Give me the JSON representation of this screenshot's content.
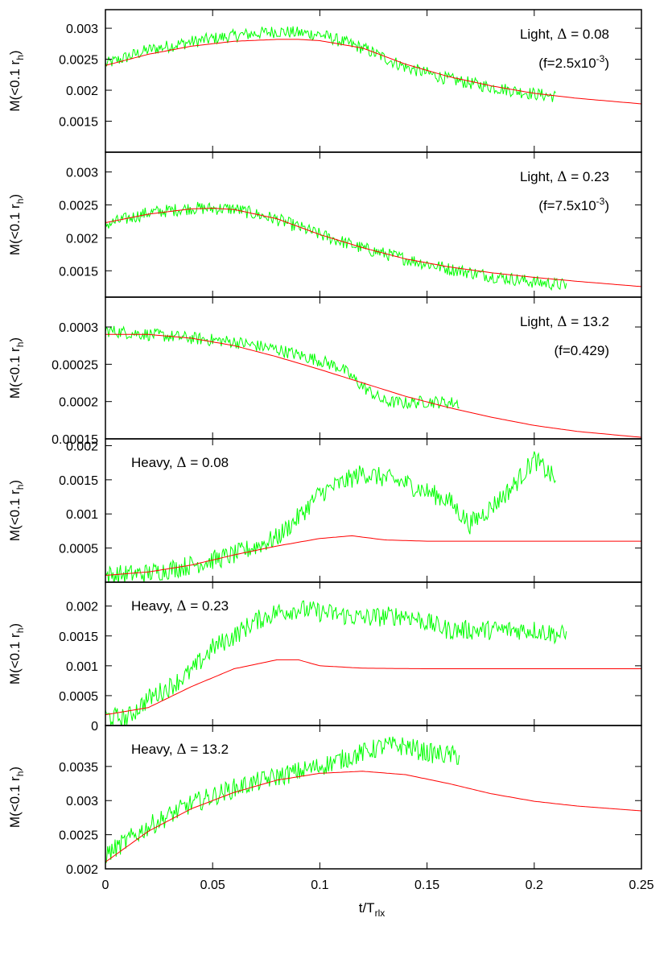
{
  "colors": {
    "simulation": "#00ff00",
    "model": "#ff0000",
    "axes": "#000000"
  },
  "chart_data": {
    "type": "line",
    "layout": "6 vertically stacked panels sharing one x axis",
    "xlabel": "t/T",
    "xlabel_sub": "rlx",
    "ylabel": "M(<0.1 r",
    "ylabel_sub": "h",
    "ylabel_close": ")",
    "xlim": [
      0,
      0.25
    ],
    "xticks": [
      0,
      0.05,
      0.1,
      0.15,
      0.2,
      0.25
    ],
    "xtick_labels": [
      "0",
      "0.05",
      "0.1",
      "0.15",
      "0.2",
      "0.25"
    ],
    "grid": false,
    "panels": [
      {
        "annotation": {
          "prefix": "Light, ",
          "symbol": "Δ",
          "value": " = 0.08"
        },
        "annotation2": {
          "base": "(f=2.5x10",
          "exp": "-3",
          "end": ")"
        },
        "ylim": [
          0.001,
          0.0033
        ],
        "yticks": [
          0.0015,
          0.002,
          0.0025,
          0.003
        ],
        "ytick_labels": [
          "0.0015",
          "0.002",
          "0.0025",
          "0.003"
        ],
        "series": [
          {
            "role": "simulation",
            "x": [
              0,
              0.02,
              0.04,
              0.06,
              0.08,
              0.1,
              0.12,
              0.14,
              0.16,
              0.18,
              0.2,
              0.21
            ],
            "y": [
              0.00242,
              0.00265,
              0.00278,
              0.00288,
              0.00295,
              0.0029,
              0.00268,
              0.00237,
              0.00218,
              0.00205,
              0.00194,
              0.0019
            ]
          },
          {
            "role": "model",
            "x": [
              0,
              0.02,
              0.04,
              0.06,
              0.08,
              0.09,
              0.1,
              0.12,
              0.14,
              0.16,
              0.18,
              0.2,
              0.22,
              0.25
            ],
            "y": [
              0.0024,
              0.00258,
              0.00271,
              0.00279,
              0.00282,
              0.00282,
              0.0028,
              0.00268,
              0.00242,
              0.00222,
              0.00207,
              0.00195,
              0.00187,
              0.00178
            ]
          }
        ]
      },
      {
        "annotation": {
          "prefix": "Light, ",
          "symbol": "Δ",
          "value": " = 0.23"
        },
        "annotation2": {
          "base": "(f=7.5x10",
          "exp": "-3",
          "end": ")"
        },
        "ylim": [
          0.0011,
          0.0033
        ],
        "yticks": [
          0.0015,
          0.002,
          0.0025,
          0.003
        ],
        "ytick_labels": [
          "0.0015",
          "0.002",
          "0.0025",
          "0.003"
        ],
        "series": [
          {
            "role": "simulation",
            "x": [
              0,
              0.02,
              0.04,
              0.06,
              0.08,
              0.1,
              0.12,
              0.14,
              0.16,
              0.18,
              0.2,
              0.215
            ],
            "y": [
              0.0022,
              0.00238,
              0.00245,
              0.00244,
              0.00228,
              0.00205,
              0.00184,
              0.00168,
              0.00153,
              0.00142,
              0.00133,
              0.00128
            ]
          },
          {
            "role": "model",
            "x": [
              0,
              0.02,
              0.04,
              0.05,
              0.06,
              0.08,
              0.1,
              0.12,
              0.14,
              0.16,
              0.18,
              0.2,
              0.22,
              0.25
            ],
            "y": [
              0.00223,
              0.00236,
              0.00244,
              0.00245,
              0.00243,
              0.00229,
              0.00205,
              0.00185,
              0.00168,
              0.00156,
              0.00147,
              0.0014,
              0.00134,
              0.00126
            ]
          }
        ]
      },
      {
        "annotation": {
          "prefix": "Light, ",
          "symbol": "Δ",
          "value": " = 13.2"
        },
        "annotation2": {
          "base": "(f=0.429)",
          "exp": "",
          "end": ""
        },
        "ylim": [
          0.00015,
          0.00034
        ],
        "yticks": [
          0.00015,
          0.0002,
          0.00025,
          0.0003
        ],
        "ytick_labels": [
          "0.00015",
          "0.0002",
          "0.00025",
          "0.0003"
        ],
        "series": [
          {
            "role": "simulation",
            "x": [
              0,
              0.02,
              0.04,
              0.06,
              0.08,
              0.1,
              0.11,
              0.12,
              0.13,
              0.14,
              0.15,
              0.165
            ],
            "y": [
              0.000295,
              0.00029,
              0.000285,
              0.00028,
              0.00027,
              0.000255,
              0.000245,
              0.00022,
              0.0002,
              0.000198,
              0.0002,
              0.000198
            ]
          },
          {
            "role": "model",
            "x": [
              0,
              0.02,
              0.04,
              0.06,
              0.08,
              0.1,
              0.12,
              0.14,
              0.16,
              0.18,
              0.2,
              0.22,
              0.25
            ],
            "y": [
              0.00029,
              0.00029,
              0.000285,
              0.000275,
              0.00026,
              0.000243,
              0.000225,
              0.000207,
              0.000192,
              0.000179,
              0.000168,
              0.00016,
              0.000152
            ]
          }
        ]
      },
      {
        "annotation": {
          "prefix": "Heavy, ",
          "symbol": "Δ",
          "value": " = 0.08"
        },
        "ylim": [
          0,
          0.0021
        ],
        "yticks": [
          0.0005,
          0.001,
          0.0015,
          0.002
        ],
        "ytick_labels": [
          "0.0005",
          "0.001",
          "0.0015",
          "0.002"
        ],
        "series": [
          {
            "role": "simulation",
            "x": [
              0,
              0.02,
              0.04,
              0.06,
              0.08,
              0.09,
              0.1,
              0.12,
              0.14,
              0.16,
              0.17,
              0.18,
              0.19,
              0.2,
              0.21
            ],
            "y": [
              0.0001,
              0.00013,
              0.00025,
              0.0004,
              0.00065,
              0.00095,
              0.0013,
              0.0016,
              0.00145,
              0.0012,
              0.00085,
              0.0011,
              0.0014,
              0.0018,
              0.0015
            ]
          },
          {
            "role": "model",
            "x": [
              0,
              0.02,
              0.04,
              0.06,
              0.08,
              0.1,
              0.115,
              0.13,
              0.15,
              0.17,
              0.2,
              0.25
            ],
            "y": [
              0.0001,
              0.00015,
              0.00025,
              0.0004,
              0.00053,
              0.00064,
              0.00068,
              0.00062,
              0.0006,
              0.0006,
              0.0006,
              0.0006
            ]
          }
        ]
      },
      {
        "annotation": {
          "prefix": "Heavy, ",
          "symbol": "Δ",
          "value": " = 0.23"
        },
        "ylim": [
          0,
          0.0024
        ],
        "yticks": [
          0,
          0.0005,
          0.001,
          0.0015,
          0.002
        ],
        "ytick_labels": [
          "0",
          "0.0005",
          "0.001",
          "0.0015",
          "0.002"
        ],
        "series": [
          {
            "role": "simulation",
            "x": [
              0,
              0.01,
              0.02,
              0.03,
              0.04,
              0.05,
              0.06,
              0.07,
              0.08,
              0.09,
              0.1,
              0.12,
              0.14,
              0.16,
              0.18,
              0.2,
              0.215
            ],
            "y": [
              0.00015,
              0.00012,
              0.00045,
              0.00065,
              0.0009,
              0.0013,
              0.0015,
              0.00175,
              0.0019,
              0.00195,
              0.0019,
              0.0018,
              0.00185,
              0.0016,
              0.0016,
              0.0016,
              0.0015
            ]
          },
          {
            "role": "model",
            "x": [
              0,
              0.02,
              0.04,
              0.06,
              0.08,
              0.09,
              0.1,
              0.12,
              0.15,
              0.2,
              0.25
            ],
            "y": [
              0.00018,
              0.0003,
              0.00065,
              0.00095,
              0.0011,
              0.0011,
              0.001,
              0.00096,
              0.00095,
              0.00095,
              0.00095
            ]
          }
        ]
      },
      {
        "annotation": {
          "prefix": "Heavy, ",
          "symbol": "Δ",
          "value": " = 13.2"
        },
        "ylim": [
          0.002,
          0.0041
        ],
        "yticks": [
          0.002,
          0.0025,
          0.003,
          0.0035
        ],
        "ytick_labels": [
          "0.002",
          "0.0025",
          "0.003",
          "0.0035"
        ],
        "series": [
          {
            "role": "simulation",
            "x": [
              0,
              0.02,
              0.04,
              0.06,
              0.08,
              0.1,
              0.12,
              0.13,
              0.14,
              0.15,
              0.165
            ],
            "y": [
              0.0022,
              0.00262,
              0.00295,
              0.00318,
              0.00335,
              0.0035,
              0.0037,
              0.0038,
              0.0038,
              0.0037,
              0.00365
            ]
          },
          {
            "role": "model",
            "x": [
              0,
              0.02,
              0.04,
              0.06,
              0.08,
              0.1,
              0.12,
              0.14,
              0.16,
              0.18,
              0.2,
              0.22,
              0.25
            ],
            "y": [
              0.0021,
              0.00255,
              0.00288,
              0.00312,
              0.0033,
              0.0034,
              0.00343,
              0.00338,
              0.00325,
              0.0031,
              0.00299,
              0.00292,
              0.00285
            ]
          }
        ]
      }
    ]
  }
}
